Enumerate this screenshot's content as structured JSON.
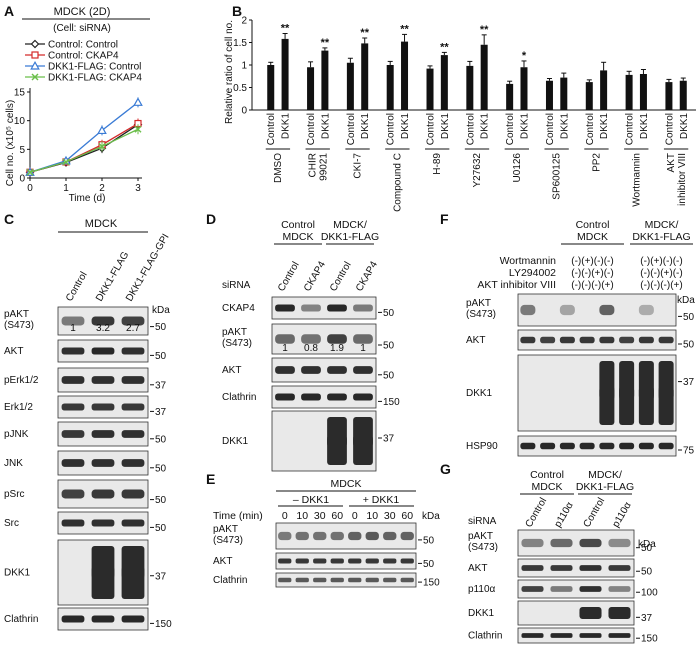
{
  "panels": {
    "A": {
      "letter": "A",
      "title": "MDCK (2D)",
      "subtitle": "(Cell: siRNA)",
      "legend": [
        {
          "label": "Control: Control",
          "color": "#222222",
          "marker": "diamond"
        },
        {
          "label": "Control: CKAP4",
          "color": "#d42a2a",
          "marker": "square"
        },
        {
          "label": "DKK1-FLAG: Control",
          "color": "#3a7bd5",
          "marker": "triangle"
        },
        {
          "label": "DKK1-FLAG: CKAP4",
          "color": "#6bbf4a",
          "marker": "x"
        }
      ],
      "ylabel": "Cell no. (x10⁵ cells)",
      "xlabel": "Time (d)"
    },
    "B": {
      "letter": "B",
      "ylabel": "Relative ratio of cell no.",
      "treatments": [
        "DMSO",
        "CHIR 99021",
        "CKI-7",
        "Compound C",
        "H-89",
        "Y27632",
        "U0126",
        "SP600125",
        "PP2",
        "Wortmannin",
        "AKT inhibitor VIII"
      ],
      "bar_labels": [
        "Control",
        "DKK1"
      ]
    },
    "C": {
      "letter": "C",
      "header": "MDCK",
      "lanes": [
        "Control",
        "DKK1-FLAG",
        "DKK1-FLAG-GPI"
      ],
      "kda": "kDa",
      "quant": [
        "1",
        "3.2",
        "2.7"
      ],
      "rows": [
        {
          "label": "pAKT (S473)",
          "marker": "50"
        },
        {
          "label": "AKT",
          "marker": "50"
        },
        {
          "label": "pErk1/2",
          "marker": "37"
        },
        {
          "label": "Erk1/2",
          "marker": "37"
        },
        {
          "label": "pJNK",
          "marker": "50"
        },
        {
          "label": "JNK",
          "marker": "50"
        },
        {
          "label": "pSrc",
          "marker": "50"
        },
        {
          "label": "Src",
          "marker": "50"
        },
        {
          "label": "DKK1",
          "marker": "37"
        },
        {
          "label": "Clathrin",
          "marker": "150"
        }
      ]
    },
    "D": {
      "letter": "D",
      "group1": "Control MDCK",
      "group2": "MDCK/ DKK1-FLAG",
      "siRNA": "siRNA",
      "lanes": [
        "Control",
        "CKAP4",
        "Control",
        "CKAP4"
      ],
      "quant": [
        "1",
        "0.8",
        "1.9",
        "1"
      ],
      "rows": [
        {
          "label": "CKAP4",
          "marker": "50"
        },
        {
          "label": "pAKT (S473)",
          "marker": "50"
        },
        {
          "label": "AKT",
          "marker": "50"
        },
        {
          "label": "Clathrin",
          "marker": "150"
        },
        {
          "label": "DKK1",
          "marker": "37"
        }
      ]
    },
    "E": {
      "letter": "E",
      "header": "MDCK",
      "group1": "– DKK1",
      "group2": "+ DKK1",
      "time_label": "Time (min)",
      "times": [
        "0",
        "10",
        "30",
        "60",
        "0",
        "10",
        "30",
        "60"
      ],
      "kda": "kDa",
      "rows": [
        {
          "label": "pAKT (S473)",
          "marker": "50"
        },
        {
          "label": "AKT",
          "marker": "50"
        },
        {
          "label": "Clathrin",
          "marker": "150"
        }
      ]
    },
    "F": {
      "letter": "F",
      "group1": "Control MDCK",
      "group2": "MDCK/ DKK1-FLAG",
      "treat_rows": [
        {
          "label": "Wortmannin",
          "signs": "(-)(+)(-)(-)",
          "signs2": "(-)(+)(-)(-)"
        },
        {
          "label": "LY294002",
          "signs": "(-)(-)(+)(-)",
          "signs2": "(-)(-)(+)(-)"
        },
        {
          "label": "AKT inhibitor VIII",
          "signs": "(-)(-)(-)(+)",
          "signs2": "(-)(-)(-)(+)"
        }
      ],
      "kda": "kDa",
      "rows": [
        {
          "label": "pAKT (S473)",
          "marker": "50"
        },
        {
          "label": "AKT",
          "marker": "50"
        },
        {
          "label": "DKK1",
          "marker": "37"
        },
        {
          "label": "HSP90",
          "marker": "75"
        }
      ]
    },
    "G": {
      "letter": "G",
      "group1": "Control MDCK",
      "group2": "MDCK/ DKK1-FLAG",
      "siRNA": "siRNA",
      "lanes": [
        "Control",
        "p110α",
        "Control",
        "p110α"
      ],
      "kda": "kDa",
      "rows": [
        {
          "label": "pAKT (S473)",
          "marker": "50"
        },
        {
          "label": "AKT",
          "marker": "50"
        },
        {
          "label": "p110α",
          "marker": "100"
        },
        {
          "label": "DKK1",
          "marker": "37"
        },
        {
          "label": "Clathrin",
          "marker": "150"
        }
      ]
    }
  },
  "chart_data": [
    {
      "type": "line",
      "x": [
        0,
        1,
        2,
        3
      ],
      "xlim": [
        0,
        3
      ],
      "ylim": [
        0,
        15
      ],
      "yticks": [
        0,
        5,
        10,
        15
      ],
      "xticks": [
        0,
        1,
        2,
        3
      ],
      "xlabel": "Time (d)",
      "ylabel": "Cell no. (x10⁵ cells)",
      "series": [
        {
          "name": "Control: Control",
          "values": [
            1,
            2.7,
            5.2,
            9.3
          ],
          "color": "#222222"
        },
        {
          "name": "Control: CKAP4",
          "values": [
            1,
            2.8,
            5.8,
            9.5
          ],
          "color": "#d42a2a"
        },
        {
          "name": "DKK1-FLAG: Control",
          "values": [
            1,
            3.0,
            8.3,
            13.2
          ],
          "color": "#3a7bd5"
        },
        {
          "name": "DKK1-FLAG: CKAP4",
          "values": [
            1,
            2.8,
            5.5,
            8.5
          ],
          "color": "#6bbf4a"
        }
      ]
    },
    {
      "type": "bar",
      "categories": [
        "DMSO",
        "CHIR 99021",
        "CKI-7",
        "Compound C",
        "H-89",
        "Y27632",
        "U0126",
        "SP600125",
        "PP2",
        "Wortmannin",
        "AKT inhibitor VIII"
      ],
      "ylim": [
        0,
        2.0
      ],
      "yticks": [
        0,
        0.5,
        1.0,
        1.5,
        2.0
      ],
      "ylabel": "Relative ratio of cell no.",
      "series": [
        {
          "name": "Control",
          "values": [
            1.0,
            0.95,
            1.05,
            1.0,
            0.92,
            0.98,
            0.58,
            0.65,
            0.62,
            0.78,
            0.62
          ]
        },
        {
          "name": "DKK1",
          "values": [
            1.58,
            1.32,
            1.48,
            1.52,
            1.22,
            1.45,
            0.95,
            0.72,
            0.88,
            0.8,
            0.65
          ]
        }
      ],
      "errors": {
        "Control": [
          0.06,
          0.12,
          0.1,
          0.08,
          0.06,
          0.1,
          0.06,
          0.05,
          0.05,
          0.08,
          0.06
        ],
        "DKK1": [
          0.12,
          0.06,
          0.12,
          0.16,
          0.06,
          0.22,
          0.14,
          0.1,
          0.18,
          0.1,
          0.06
        ]
      },
      "significance": [
        "**",
        "**",
        "**",
        "**",
        "**",
        "**",
        "*",
        "",
        "",
        "",
        ""
      ]
    }
  ]
}
